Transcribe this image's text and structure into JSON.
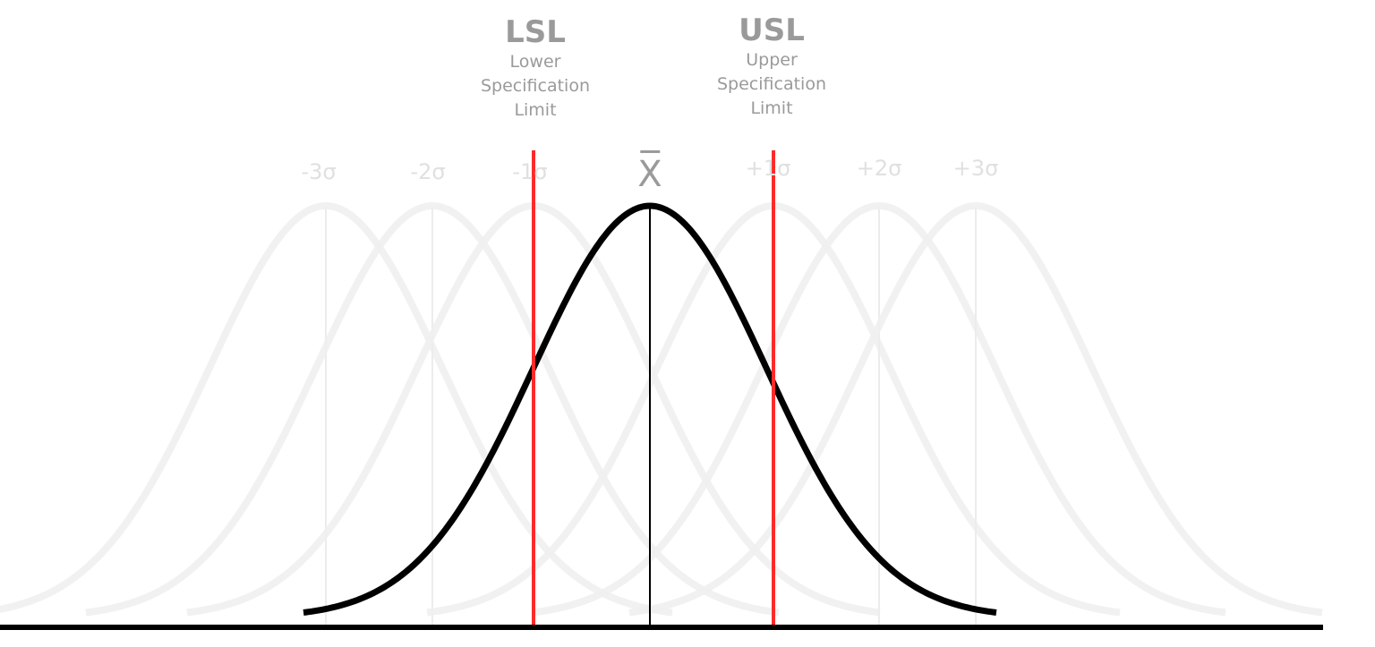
{
  "lsl": {
    "abbr": "LSL",
    "line1": "Lower",
    "line2": "Specification",
    "line3": "Limit"
  },
  "usl": {
    "abbr": "USL",
    "line1": "Upper",
    "line2": "Specification",
    "line3": "Limit"
  },
  "mean_symbol": "X",
  "sigma_labels": [
    "-3σ",
    "-2σ",
    "-1σ",
    "+1σ",
    "+2σ",
    "+3σ"
  ],
  "colors": {
    "spec_limit": "#ff2a2a",
    "main_curve": "#000000",
    "shifted_curves": "#f0f0f0",
    "label": "#9a9a9a",
    "sigma_label": "#e0e0e0"
  }
}
